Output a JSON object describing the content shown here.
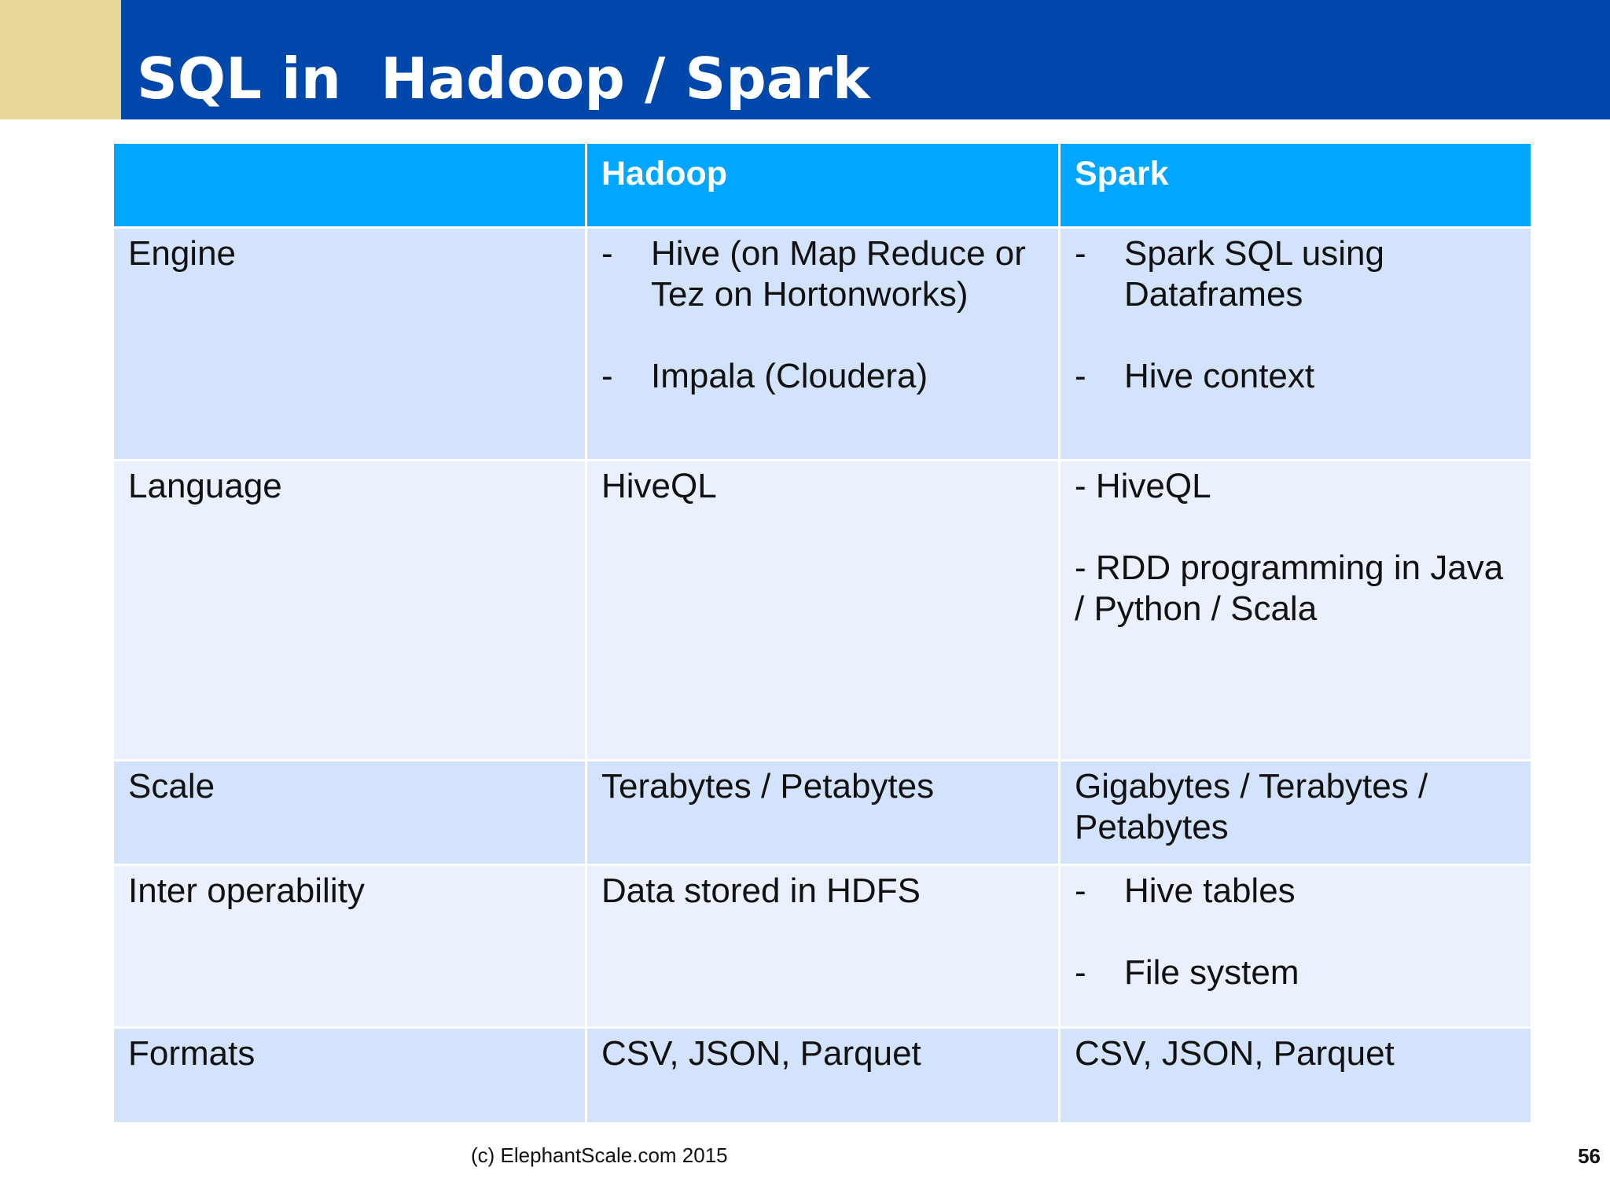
{
  "slide": {
    "title": "SQL in  Hadoop / Spark",
    "footer": "(c) ElephantScale.com  2015",
    "page_number": "56"
  },
  "table": {
    "headers": [
      "",
      "Hadoop",
      "Spark"
    ],
    "rows": [
      {
        "label": "Engine",
        "hadoop": [
          "Hive (on Map Reduce or Tez on Hortonworks)",
          "Impala (Cloudera)"
        ],
        "spark": [
          "Spark SQL using Dataframes",
          "Hive context"
        ]
      },
      {
        "label": "Language",
        "hadoop": "HiveQL",
        "spark": [
          "- HiveQL",
          "- RDD programming in Java / Python / Scala"
        ]
      },
      {
        "label": "Scale",
        "hadoop": "Terabytes / Petabytes",
        "spark": "Gigabytes / Terabytes  / Petabytes"
      },
      {
        "label": "Inter operability",
        "hadoop": "Data stored in HDFS",
        "spark": [
          "Hive tables",
          "File system"
        ]
      },
      {
        "label": "Formats",
        "hadoop": "CSV, JSON, Parquet",
        "spark": "CSV, JSON, Parquet"
      }
    ],
    "bullet_dash": "-"
  },
  "colors": {
    "title_bar": "#0047ab",
    "title_accent": "#e7d79a",
    "header_row": "#00a6ff",
    "row_dark": "#d4e3fc",
    "row_light": "#eaf1fd"
  }
}
